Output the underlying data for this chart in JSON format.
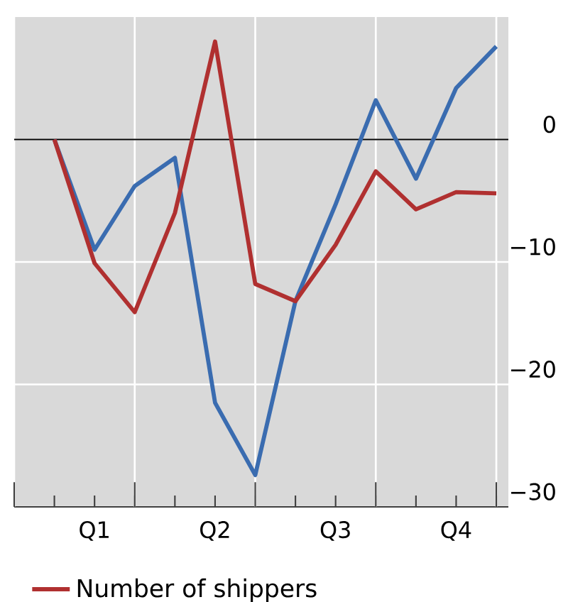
{
  "chart_data": {
    "type": "line",
    "categories": [
      null,
      "Q1",
      null,
      null,
      "Q2",
      null,
      null,
      "Q3",
      null,
      null,
      "Q4",
      null
    ],
    "series": [
      {
        "color": "#3a6cb0",
        "values": [
          0,
          -9,
          -3.8,
          -1.5,
          -21.5,
          -27.4,
          -13.2,
          -5.3,
          3.2,
          -3.2,
          4.2,
          7.6
        ]
      },
      {
        "name": "Number of shippers",
        "color": "#b03030",
        "values": [
          0,
          -10.1,
          -14.1,
          -6.0,
          8.0,
          -11.8,
          -13.2,
          -8.6,
          -2.6,
          -5.7,
          -4.3,
          -4.4
        ]
      }
    ],
    "ylim": [
      -30,
      10
    ],
    "yticks": [
      {
        "value": 0,
        "label": "0"
      },
      {
        "value": -10,
        "label": "−10"
      },
      {
        "value": -20,
        "label": "−20"
      },
      {
        "value": -30,
        "label": "−30"
      }
    ],
    "ref_lines": [
      {
        "axis": "y",
        "value": 0,
        "color": "#000000"
      }
    ],
    "grid": true,
    "legend": "bottom",
    "marker": "none",
    "line_style": "solid"
  }
}
